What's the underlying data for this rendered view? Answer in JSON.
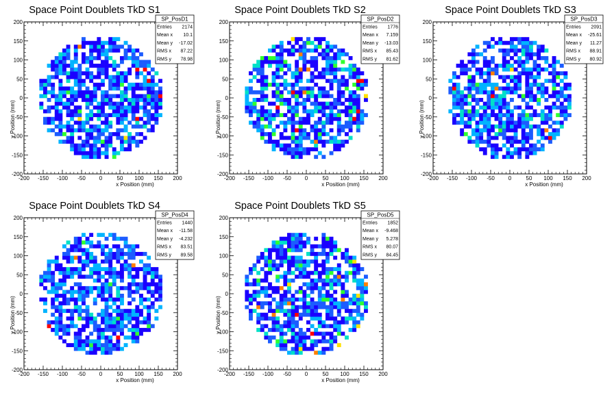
{
  "chart_data": [
    {
      "type": "heatmap",
      "title": "Space Point Doublets TkD S1",
      "xlabel": "x Position (mm)",
      "ylabel": "y Position (mm)",
      "xlim": [
        -200,
        200
      ],
      "ylim": [
        -200,
        200
      ],
      "x_ticks": [
        "-200",
        "-150",
        "-100",
        "-50",
        "0",
        "50",
        "100",
        "150",
        "200"
      ],
      "y_ticks": [
        "200",
        "150",
        "100",
        "50",
        "0",
        "-50",
        "-100",
        "-150",
        "-200"
      ],
      "grid": false,
      "stats": {
        "name": "SP_PosD1",
        "rows": [
          {
            "label": "Entries",
            "value": "2174"
          },
          {
            "label": "Mean x",
            "value": "10.1"
          },
          {
            "label": "Mean y",
            "value": "-17.02"
          },
          {
            "label": "RMS x",
            "value": "87.22"
          },
          {
            "label": "RMS y",
            "value": "78.98"
          }
        ]
      },
      "seed": 11,
      "hot_level": 0.08
    },
    {
      "type": "heatmap",
      "title": "Space Point Doublets TkD S2",
      "xlabel": "x Position (mm)",
      "ylabel": "y Position (mm)",
      "xlim": [
        -200,
        200
      ],
      "ylim": [
        -200,
        200
      ],
      "x_ticks": [
        "-200",
        "-150",
        "-100",
        "-50",
        "0",
        "50",
        "100",
        "150",
        "200"
      ],
      "y_ticks": [
        "200",
        "150",
        "100",
        "50",
        "0",
        "-50",
        "-100",
        "-150",
        "-200"
      ],
      "grid": false,
      "stats": {
        "name": "SP_PosD2",
        "rows": [
          {
            "label": "Entries",
            "value": "1776"
          },
          {
            "label": "Mean x",
            "value": "7.159"
          },
          {
            "label": "Mean y",
            "value": "-13.03"
          },
          {
            "label": "RMS x",
            "value": "85.43"
          },
          {
            "label": "RMS y",
            "value": "81.62"
          }
        ]
      },
      "seed": 23,
      "hot_level": 0.14
    },
    {
      "type": "heatmap",
      "title": "Space Point Doublets TkD S3",
      "xlabel": "x Position (mm)",
      "ylabel": "y Position (mm)",
      "xlim": [
        -200,
        200
      ],
      "ylim": [
        -200,
        200
      ],
      "x_ticks": [
        "-200",
        "-150",
        "-100",
        "-50",
        "0",
        "50",
        "100",
        "150",
        "200"
      ],
      "y_ticks": [
        "200",
        "150",
        "100",
        "50",
        "0",
        "-50",
        "-100",
        "-150",
        "-200"
      ],
      "grid": false,
      "stats": {
        "name": "SP_PosD3",
        "rows": [
          {
            "label": "Entries",
            "value": "2091"
          },
          {
            "label": "Mean x",
            "value": "-25.61"
          },
          {
            "label": "Mean y",
            "value": "11.27"
          },
          {
            "label": "RMS x",
            "value": "88.91"
          },
          {
            "label": "RMS y",
            "value": "80.92"
          }
        ]
      },
      "seed": 37,
      "hot_level": 0.1
    },
    {
      "type": "heatmap",
      "title": "Space Point Doublets TkD S4",
      "xlabel": "x Position (mm)",
      "ylabel": "y Position (mm)",
      "xlim": [
        -200,
        200
      ],
      "ylim": [
        -200,
        200
      ],
      "x_ticks": [
        "-200",
        "-150",
        "-100",
        "-50",
        "0",
        "50",
        "100",
        "150",
        "200"
      ],
      "y_ticks": [
        "200",
        "150",
        "100",
        "50",
        "0",
        "-50",
        "-100",
        "-150",
        "-200"
      ],
      "grid": false,
      "stats": {
        "name": "SP_PosD4",
        "rows": [
          {
            "label": "Entries",
            "value": "1440"
          },
          {
            "label": "Mean x",
            "value": "-11.58"
          },
          {
            "label": "Mean y",
            "value": "-4.232"
          },
          {
            "label": "RMS x",
            "value": "83.51"
          },
          {
            "label": "RMS y",
            "value": "89.58"
          }
        ]
      },
      "seed": 53,
      "hot_level": 0.05
    },
    {
      "type": "heatmap",
      "title": "Space Point Doublets TkD S5",
      "xlabel": "x Position (mm)",
      "ylabel": "y Position (mm)",
      "xlim": [
        -200,
        200
      ],
      "ylim": [
        -200,
        200
      ],
      "x_ticks": [
        "-200",
        "-150",
        "-100",
        "-50",
        "0",
        "50",
        "100",
        "150",
        "200"
      ],
      "y_ticks": [
        "200",
        "150",
        "100",
        "50",
        "0",
        "-50",
        "-100",
        "-150",
        "-200"
      ],
      "grid": false,
      "stats": {
        "name": "SP_PosD5",
        "rows": [
          {
            "label": "Entries",
            "value": "1852"
          },
          {
            "label": "Mean x",
            "value": "-9.468"
          },
          {
            "label": "Mean y",
            "value": "5.278"
          },
          {
            "label": "RMS x",
            "value": "80.07"
          },
          {
            "label": "RMS y",
            "value": "84.45"
          }
        ]
      },
      "seed": 71,
      "hot_level": 0.16
    }
  ],
  "colors": {
    "palette": [
      "#1a00ff",
      "#1c5cff",
      "#00b4ff",
      "#00e0c8",
      "#30ff30",
      "#ffe000",
      "#ff8000",
      "#ff0000"
    ],
    "background": "#ffffff",
    "frame": "#000000"
  }
}
